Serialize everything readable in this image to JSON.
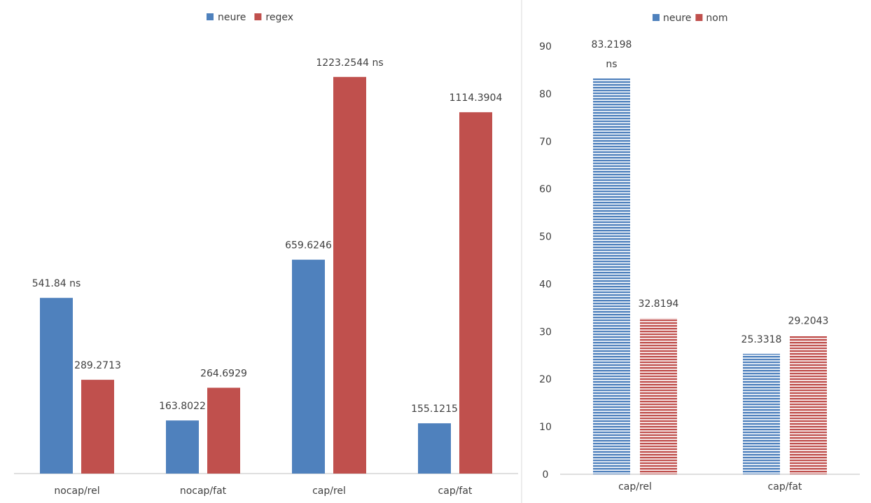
{
  "colors": {
    "neure": "#4f81bd",
    "regex": "#c0504d",
    "nom": "#c0504d",
    "axis": "#bfbfbf",
    "divider": "#d9d9d9"
  },
  "chart_data": [
    {
      "type": "bar",
      "title": "",
      "legend": "top-center",
      "categories": [
        "nocap/rel",
        "nocap/fat",
        "cap/rel",
        "cap/fat"
      ],
      "series": [
        {
          "name": "neure",
          "values": [
            541.84,
            163.8022,
            659.6246,
            155.1215
          ],
          "labels": [
            "541.84 ns",
            "163.8022",
            "659.6246",
            "155.1215"
          ]
        },
        {
          "name": "regex",
          "values": [
            289.2713,
            264.6929,
            1223.2544,
            1114.3904
          ],
          "labels": [
            "289.2713",
            "264.6929",
            "1223.2544 ns",
            "1114.3904"
          ]
        }
      ],
      "ylim": [
        0,
        1400
      ],
      "yaxis_visible": false,
      "grid": false
    },
    {
      "type": "bar",
      "title": "",
      "legend": "top-center",
      "categories": [
        "cap/rel",
        "cap/fat"
      ],
      "series": [
        {
          "name": "neure",
          "values": [
            83.2198,
            25.3318
          ],
          "labels": [
            [
              "83.2198",
              "ns"
            ],
            "25.3318"
          ]
        },
        {
          "name": "nom",
          "values": [
            32.8194,
            29.2043
          ],
          "labels": [
            "32.8194",
            "29.2043"
          ]
        }
      ],
      "ylim": [
        0,
        90
      ],
      "yticks": [
        "0",
        "10",
        "20",
        "30",
        "40",
        "50",
        "60",
        "70",
        "80",
        "90"
      ],
      "grid": false,
      "fill_pattern": "horizontal-stripes"
    }
  ]
}
